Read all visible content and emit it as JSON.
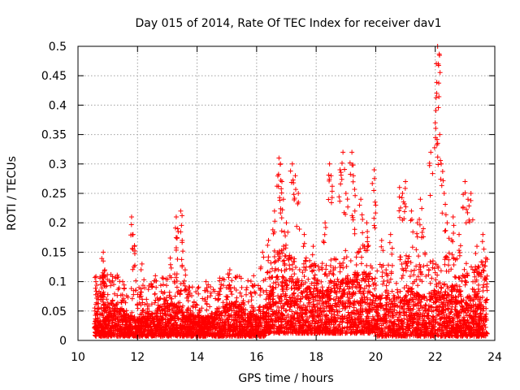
{
  "chart_data": {
    "type": "scatter",
    "title": "Day 015 of 2014, Rate Of TEC Index for receiver dav1",
    "xlabel": "GPS time / hours",
    "ylabel": "ROTI / TECUs",
    "xlim": [
      10,
      24
    ],
    "ylim": [
      0,
      0.5
    ],
    "xticks": [
      "10",
      "12",
      "14",
      "16",
      "18",
      "20",
      "22",
      "24"
    ],
    "yticks": [
      "0",
      "0.05",
      "0.1",
      "0.15",
      "0.2",
      "0.25",
      "0.3",
      "0.35",
      "0.4",
      "0.45",
      "0.5"
    ],
    "grid": true,
    "marker": "+",
    "series_color": "#ff0000",
    "series": [
      {
        "name": "ROTI",
        "x": [
          10.6,
          10.75,
          10.85,
          10.85,
          10.9,
          11.2,
          11.5,
          11.8,
          11.85,
          11.9,
          12.05,
          12.15,
          12.3,
          12.6,
          12.9,
          13.1,
          13.3,
          13.35,
          13.45,
          13.5,
          13.6,
          13.75,
          14.0,
          14.3,
          14.7,
          15.1,
          15.5,
          15.9,
          16.2,
          16.4,
          16.6,
          16.75,
          16.8,
          16.85,
          16.9,
          17.0,
          17.2,
          17.3,
          17.4,
          17.6,
          17.9,
          18.1,
          18.3,
          18.45,
          18.5,
          18.8,
          18.9,
          19.0,
          19.2,
          19.25,
          19.3,
          19.5,
          19.7,
          19.95,
          20.0,
          20.2,
          20.5,
          20.8,
          20.9,
          21.0,
          21.2,
          21.4,
          21.5,
          21.6,
          21.85,
          22.0,
          22.05,
          22.08,
          22.1,
          22.15,
          22.2,
          22.3,
          22.4,
          22.6,
          22.8,
          23.0,
          23.1,
          23.2,
          23.4,
          23.6,
          23.7
        ],
        "y": [
          0.1,
          0.08,
          0.15,
          0.135,
          0.12,
          0.05,
          0.1,
          0.21,
          0.18,
          0.16,
          0.09,
          0.13,
          0.07,
          0.11,
          0.07,
          0.14,
          0.21,
          0.19,
          0.22,
          0.17,
          0.12,
          0.09,
          0.06,
          0.1,
          0.08,
          0.12,
          0.09,
          0.11,
          0.15,
          0.17,
          0.22,
          0.31,
          0.3,
          0.27,
          0.24,
          0.2,
          0.3,
          0.28,
          0.25,
          0.18,
          0.16,
          0.12,
          0.2,
          0.3,
          0.28,
          0.29,
          0.32,
          0.25,
          0.32,
          0.28,
          0.22,
          0.24,
          0.2,
          0.29,
          0.23,
          0.17,
          0.18,
          0.26,
          0.25,
          0.27,
          0.22,
          0.2,
          0.24,
          0.19,
          0.32,
          0.37,
          0.42,
          0.5,
          0.47,
          0.35,
          0.3,
          0.25,
          0.2,
          0.21,
          0.18,
          0.27,
          0.24,
          0.25,
          0.16,
          0.18,
          0.14
        ]
      }
    ]
  }
}
